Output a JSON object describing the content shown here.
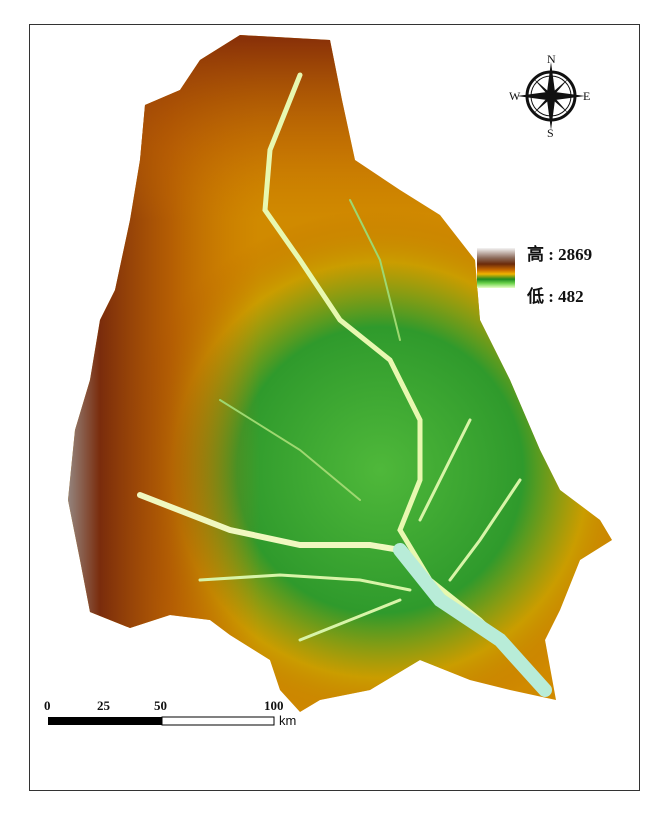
{
  "map": {
    "north_arrow": {
      "icon": "compass-rose-icon",
      "n": "N",
      "s": "S",
      "e": "E",
      "w": "W"
    },
    "legend": {
      "high_label": "高 : 2869",
      "low_label": "低 : 482",
      "colors": [
        "#f4f4f4",
        "#8b8b8b",
        "#6b2a0a",
        "#c86a00",
        "#f0b400",
        "#1f8a1f",
        "#6bd24a",
        "#e8ffc8"
      ]
    },
    "scale_bar": {
      "ticks": [
        "0",
        "25",
        "50",
        "100"
      ],
      "unit": "km"
    }
  }
}
